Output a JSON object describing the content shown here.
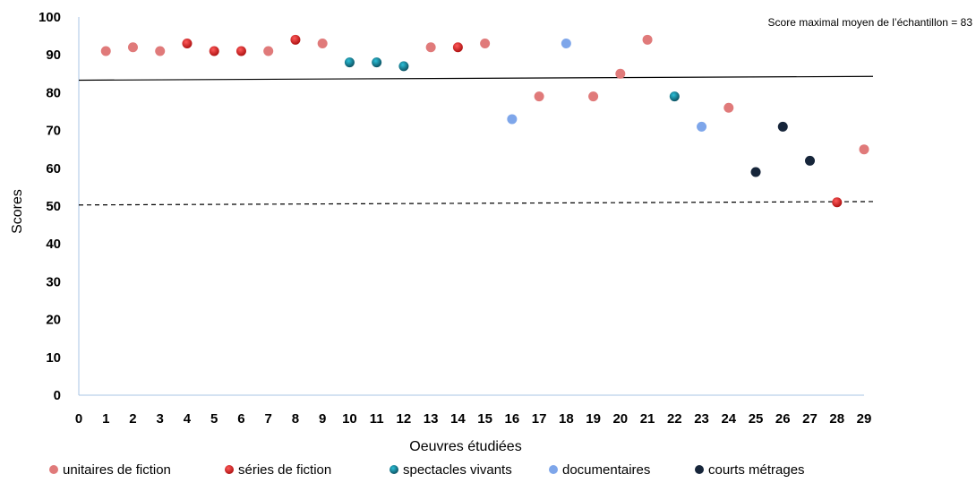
{
  "chart_data": {
    "type": "scatter",
    "xlabel": "Oeuvres étudiées",
    "ylabel": "Scores",
    "xlim": [
      0,
      29
    ],
    "ylim": [
      0,
      100
    ],
    "xticks": [
      0,
      1,
      2,
      3,
      4,
      5,
      6,
      7,
      8,
      9,
      10,
      11,
      12,
      13,
      14,
      15,
      16,
      17,
      18,
      19,
      20,
      21,
      22,
      23,
      24,
      25,
      26,
      27,
      28,
      29
    ],
    "yticks": [
      0,
      10,
      20,
      30,
      40,
      50,
      60,
      70,
      80,
      90,
      100
    ],
    "grid": false,
    "legend_position": "bottom",
    "annotation": "Score maximal moyen de l’échantillon = 83",
    "reference_lines": [
      {
        "style": "solid",
        "y_start": 83.3,
        "y_end": 84.3
      },
      {
        "style": "dashed",
        "y_start": 50.3,
        "y_end": 51.2
      }
    ],
    "series": [
      {
        "name": "unitaires de fiction",
        "color": "#e07a7a",
        "gradient": false,
        "points": [
          [
            1,
            91
          ],
          [
            2,
            92
          ],
          [
            3,
            91
          ],
          [
            7,
            91
          ],
          [
            9,
            93
          ],
          [
            13,
            92
          ],
          [
            15,
            93
          ],
          [
            17,
            79
          ],
          [
            19,
            79
          ],
          [
            20,
            85
          ],
          [
            21,
            94
          ],
          [
            24,
            76
          ],
          [
            29,
            65
          ]
        ]
      },
      {
        "name": "séries de fiction",
        "color": "#c41818",
        "gradient": true,
        "points": [
          [
            4,
            93
          ],
          [
            5,
            91
          ],
          [
            6,
            91
          ],
          [
            8,
            94
          ],
          [
            14,
            92
          ],
          [
            28,
            51
          ]
        ]
      },
      {
        "name": "spectacles vivants",
        "color": "#0f7f95",
        "gradient": true,
        "points": [
          [
            10,
            88
          ],
          [
            11,
            88
          ],
          [
            12,
            87
          ],
          [
            22,
            79
          ]
        ]
      },
      {
        "name": "documentaires",
        "color": "#7ea6ea",
        "gradient": false,
        "points": [
          [
            16,
            73
          ],
          [
            18,
            93
          ],
          [
            23,
            71
          ]
        ]
      },
      {
        "name": "courts métrages",
        "color": "#16253a",
        "gradient": false,
        "points": [
          [
            25,
            59
          ],
          [
            26,
            71
          ],
          [
            27,
            62
          ]
        ]
      }
    ]
  }
}
